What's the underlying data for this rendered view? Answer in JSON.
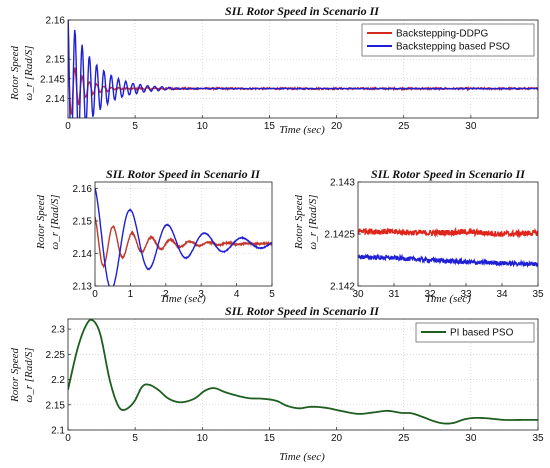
{
  "chart_data": [
    {
      "id": "top",
      "type": "line",
      "title": "SIL Rotor Speed in Scenario II",
      "xlabel": "Time (sec)",
      "ylabel_top": "Rotor Speed",
      "ylabel_bottom": "ω_r [Rad/S]",
      "xlim": [
        0,
        35
      ],
      "ylim": [
        2.135,
        2.16
      ],
      "xticks": [
        0,
        5,
        10,
        15,
        20,
        25,
        30
      ],
      "yticks": [
        2.14,
        2.145,
        2.15,
        2.16
      ],
      "xtick_labels": [
        "0",
        "5",
        "10",
        "15",
        "20",
        "25",
        "30"
      ],
      "ytick_labels": [
        "2.14",
        "2.145",
        "2.15",
        "2.16"
      ],
      "grid": true,
      "legend": "top-right",
      "series": [
        {
          "name": "Backstepping-DDPG",
          "color": "#d42a1e",
          "kind": "damped",
          "final": 2.1425,
          "amp": 0.0085,
          "decay": 0.95,
          "freq": 3.7,
          "noise": 0.00025
        },
        {
          "name": "Backstepping based PSO",
          "color": "#1f1fd6",
          "kind": "damped",
          "final": 2.1425,
          "amp": 0.02,
          "decay": 0.55,
          "freq": 3.7,
          "noise": 0.0001
        }
      ]
    },
    {
      "id": "midleft",
      "type": "line",
      "title": "SIL Rotor Speed in Scenario II",
      "xlabel": "Time (sec)",
      "ylabel_top": "Rotor Speed",
      "ylabel_bottom": "ω_r [Rad/S]",
      "xlim": [
        0,
        5
      ],
      "ylim": [
        2.13,
        2.162
      ],
      "xticks": [
        0,
        1,
        2,
        3,
        4,
        5
      ],
      "yticks": [
        2.13,
        2.14,
        2.15,
        2.16
      ],
      "xtick_labels": [
        "0",
        "1",
        "2",
        "3",
        "4",
        "5"
      ],
      "ytick_labels": [
        "2.13",
        "2.14",
        "2.15",
        "2.16"
      ],
      "grid": true,
      "series": [
        {
          "name": "Backstepping-DDPG",
          "color": "#c0392b",
          "kind": "damped",
          "final": 2.143,
          "amp": 0.0085,
          "decay": 0.9,
          "freq": 3.7,
          "noise": 0.0002
        },
        {
          "name": "Backstepping based PSO",
          "color": "#1f1fd6",
          "kind": "damped",
          "final": 2.143,
          "amp": 0.018,
          "decay": 0.55,
          "freq": 1.9,
          "noise": 0.0001
        }
      ]
    },
    {
      "id": "midright",
      "type": "line",
      "title": "SIL Rotor Speed in Scenario II",
      "xlabel": "Time (sec)",
      "ylabel_top": "Rotor Speed",
      "ylabel_bottom": "ω_r [Rad/S]",
      "xlim": [
        30,
        35
      ],
      "ylim": [
        2.142,
        2.143
      ],
      "xticks": [
        30,
        31,
        32,
        33,
        34,
        35
      ],
      "yticks": [
        2.142,
        2.1425,
        2.143
      ],
      "xtick_labels": [
        "30",
        "31",
        "32",
        "33",
        "34",
        "35"
      ],
      "ytick_labels": [
        "2.142",
        "2.1425",
        "2.143"
      ],
      "grid": true,
      "series": [
        {
          "name": "Backstepping-DDPG",
          "color": "#e0241a",
          "kind": "noisy",
          "base": [
            [
              30,
              2.14253
            ],
            [
              31,
              2.14252
            ],
            [
              32,
              2.14251
            ],
            [
              33,
              2.14252
            ],
            [
              34,
              2.1425
            ],
            [
              35,
              2.14251
            ]
          ],
          "noise": 2.8e-05
        },
        {
          "name": "Backstepping based PSO",
          "color": "#1f1fd6",
          "kind": "noisy",
          "base": [
            [
              30,
              2.14228
            ],
            [
              31,
              2.14227
            ],
            [
              32,
              2.14225
            ],
            [
              33,
              2.14223
            ],
            [
              34,
              2.14222
            ],
            [
              35,
              2.14221
            ]
          ],
          "noise": 2.2e-05
        }
      ]
    },
    {
      "id": "bottom",
      "type": "line",
      "title": "SIL Rotor Speed in Scenario II",
      "xlabel": "Time (sec)",
      "ylabel_top": "Rotor Speed",
      "ylabel_bottom": "ω_r [Rad/S]",
      "xlim": [
        0,
        35
      ],
      "ylim": [
        2.1,
        2.32
      ],
      "xticks": [
        0,
        5,
        10,
        15,
        20,
        25,
        30,
        35
      ],
      "yticks": [
        2.1,
        2.15,
        2.2,
        2.25,
        2.3
      ],
      "xtick_labels": [
        "0",
        "5",
        "10",
        "15",
        "20",
        "25",
        "30",
        "35"
      ],
      "ytick_labels": [
        "2.1",
        "2.15",
        "2.2",
        "2.25",
        "2.3"
      ],
      "grid": true,
      "legend": "top-right",
      "series": [
        {
          "name": "PI based PSO",
          "color": "#1e5e1e",
          "kind": "points",
          "points": [
            [
              0,
              2.18
            ],
            [
              0.7,
              2.26
            ],
            [
              1.3,
              2.305
            ],
            [
              1.8,
              2.318
            ],
            [
              2.4,
              2.29
            ],
            [
              3.1,
              2.2
            ],
            [
              3.7,
              2.15
            ],
            [
              4.2,
              2.14
            ],
            [
              4.9,
              2.155
            ],
            [
              5.5,
              2.185
            ],
            [
              6,
              2.19
            ],
            [
              6.7,
              2.18
            ],
            [
              7.5,
              2.162
            ],
            [
              8.4,
              2.155
            ],
            [
              9.4,
              2.162
            ],
            [
              10.2,
              2.178
            ],
            [
              10.9,
              2.183
            ],
            [
              11.7,
              2.175
            ],
            [
              12.6,
              2.168
            ],
            [
              13.5,
              2.163
            ],
            [
              14.5,
              2.162
            ],
            [
              15.5,
              2.158
            ],
            [
              16.3,
              2.148
            ],
            [
              17.2,
              2.143
            ],
            [
              18.1,
              2.146
            ],
            [
              19.2,
              2.144
            ],
            [
              20.3,
              2.138
            ],
            [
              21.6,
              2.132
            ],
            [
              22.8,
              2.135
            ],
            [
              23.8,
              2.138
            ],
            [
              24.8,
              2.134
            ],
            [
              25.6,
              2.133
            ],
            [
              26.5,
              2.125
            ],
            [
              27.3,
              2.117
            ],
            [
              28,
              2.113
            ],
            [
              28.7,
              2.114
            ],
            [
              29.5,
              2.121
            ],
            [
              30.3,
              2.124
            ],
            [
              31.3,
              2.123
            ],
            [
              32.5,
              2.12
            ],
            [
              33.8,
              2.12
            ],
            [
              35,
              2.12
            ]
          ]
        }
      ]
    }
  ]
}
